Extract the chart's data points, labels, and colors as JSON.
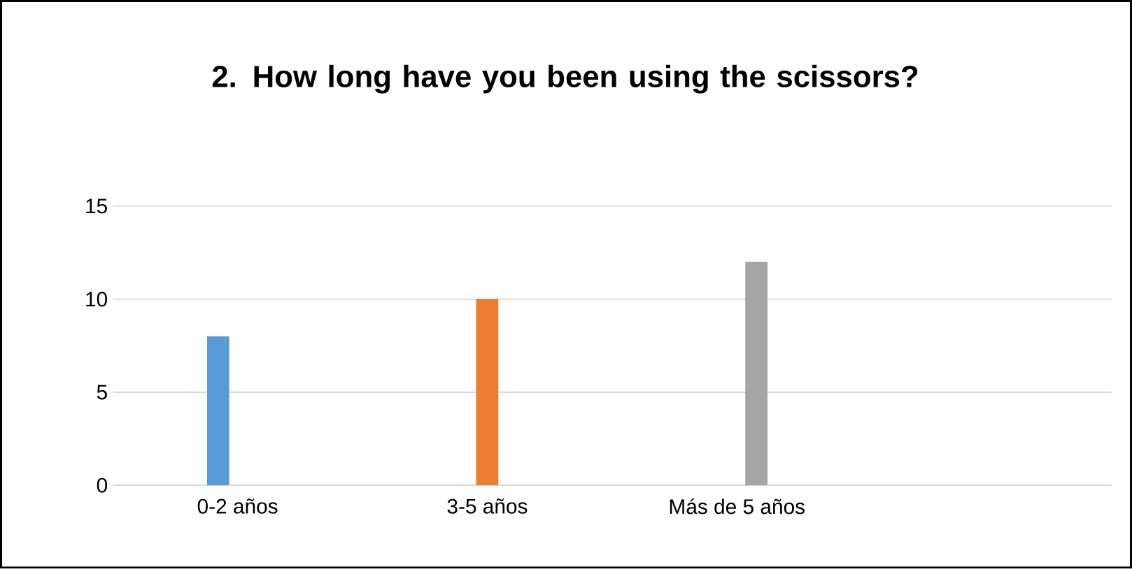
{
  "chart_data": {
    "type": "bar",
    "title": "2. How long have you been using the scissors?",
    "categories": [
      "0-2 años",
      "3-5 años",
      "Más de 5 años",
      null
    ],
    "series": [
      {
        "color": "#5b9bd5",
        "values": [
          8,
          null,
          null,
          null
        ]
      },
      {
        "color": "#ed7d31",
        "values": [
          null,
          10,
          null,
          null
        ]
      },
      {
        "color": "#a5a5a5",
        "values": [
          null,
          null,
          12,
          null
        ]
      }
    ],
    "ylim": [
      0,
      15
    ],
    "yticks": [
      0,
      5,
      10,
      15
    ],
    "grid": "y"
  }
}
